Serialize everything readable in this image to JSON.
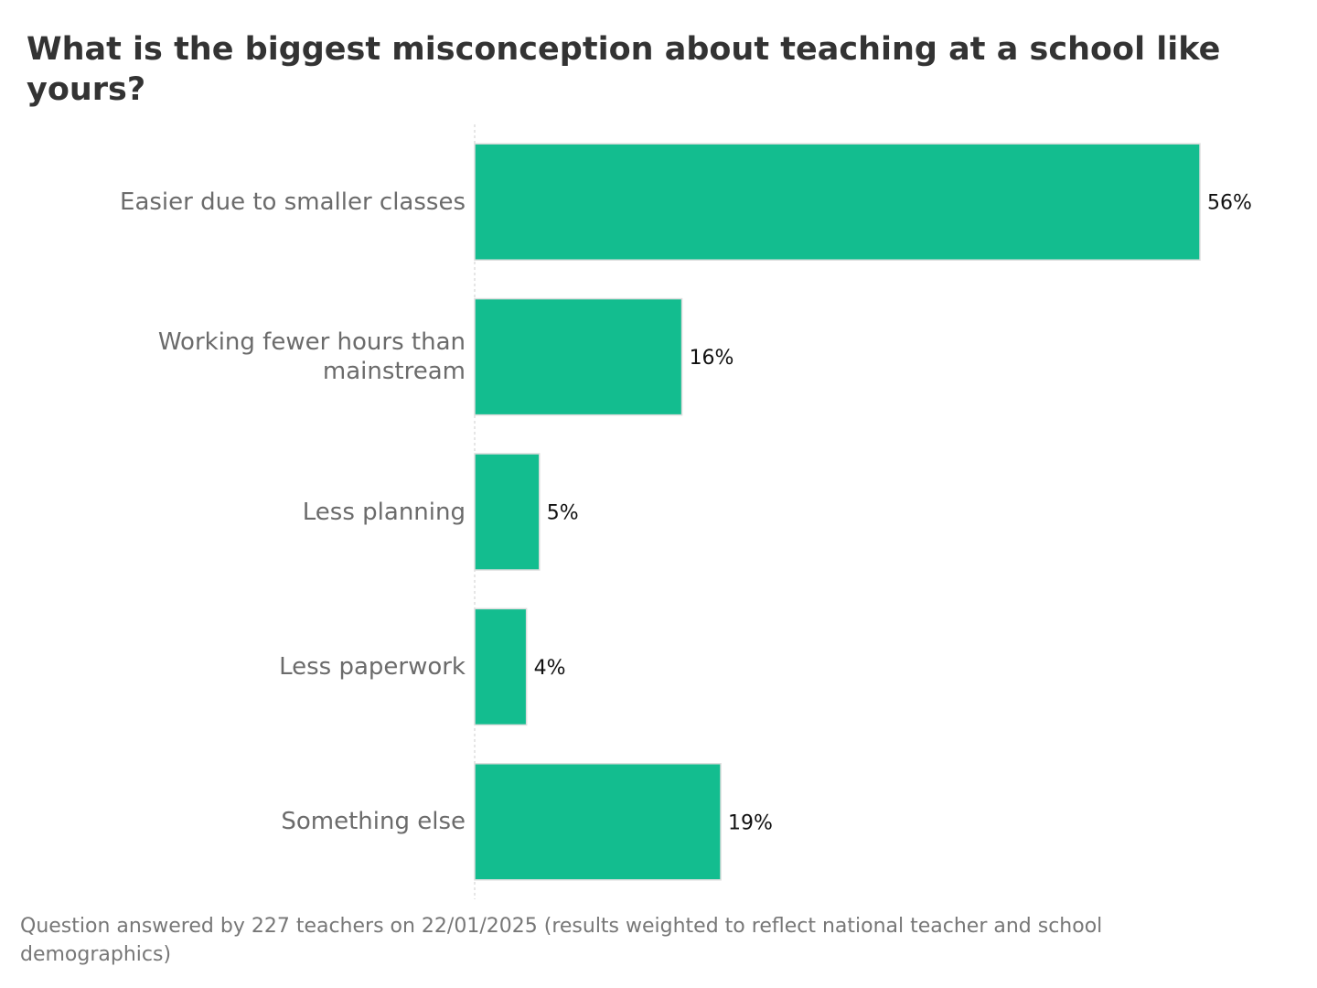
{
  "chart_data": {
    "type": "bar",
    "orientation": "horizontal",
    "title": "What is the biggest misconception about teaching at a school like yours?",
    "categories": [
      "Easier due to smaller classes",
      "Working fewer hours than mainstream",
      "Less planning",
      "Less paperwork",
      "Something else"
    ],
    "values": [
      56,
      16,
      5,
      4,
      19
    ],
    "value_labels": [
      "56%",
      "16%",
      "5%",
      "4%",
      "19%"
    ],
    "color": "#13bd8f",
    "footnote": "Question answered by 227 teachers on 22/01/2025 (results weighted to reflect national teacher and school demographics)"
  }
}
